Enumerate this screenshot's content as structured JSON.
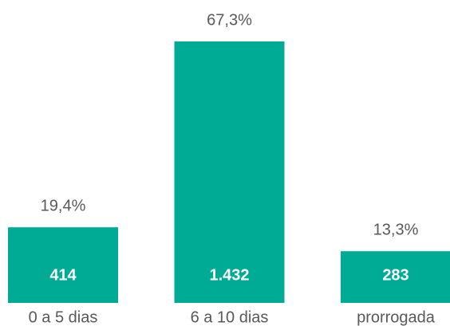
{
  "chart_data": {
    "type": "bar",
    "categories": [
      "0 a 5 dias",
      "6 a 10 dias",
      "prorrogada"
    ],
    "values": [
      414,
      1432,
      283
    ],
    "value_labels": [
      "414",
      "1.432",
      "283"
    ],
    "shares": [
      19.4,
      67.3,
      13.3
    ],
    "share_labels": [
      "19,4%",
      "67,3%",
      "13,3%"
    ],
    "color": "#00ab96"
  }
}
